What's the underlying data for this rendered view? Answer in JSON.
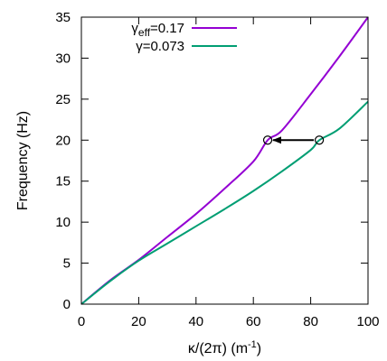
{
  "chart_data": {
    "type": "line",
    "title": "",
    "xlabel": {
      "prefix": "κ/(2π) (m",
      "sup": "-1",
      "suffix": ")"
    },
    "ylabel": "Frequency (Hz)",
    "xlim": [
      0,
      100
    ],
    "ylim": [
      0,
      35
    ],
    "x_ticks": [
      0,
      20,
      40,
      60,
      80,
      100
    ],
    "y_ticks": [
      0,
      5,
      10,
      15,
      20,
      25,
      30,
      35
    ],
    "grid": false,
    "legend_position": "top-left",
    "series": [
      {
        "key": "eff",
        "legend": {
          "main": "γ",
          "sub": "eff",
          "value": "=0.17"
        },
        "color": "#9400d3",
        "x": [
          0,
          10,
          20,
          30,
          40,
          50,
          60,
          65,
          70,
          80,
          90,
          100
        ],
        "y": [
          0,
          2.9,
          5.4,
          8.2,
          11.0,
          14.1,
          17.4,
          20.0,
          21.2,
          25.6,
          30.2,
          35.0
        ]
      },
      {
        "key": "gamma",
        "legend": {
          "main": "γ",
          "sub": "",
          "value": "=0.073"
        },
        "color": "#009e73",
        "x": [
          0,
          10,
          20,
          30,
          40,
          50,
          60,
          70,
          80,
          83,
          90,
          100
        ],
        "y": [
          0,
          2.8,
          5.3,
          7.4,
          9.5,
          11.6,
          13.8,
          16.2,
          18.8,
          20.0,
          21.4,
          24.7
        ]
      }
    ],
    "markers": [
      {
        "x": 65,
        "y": 20,
        "shape": "open-circle"
      },
      {
        "x": 83,
        "y": 20,
        "shape": "open-circle"
      }
    ],
    "arrow": {
      "from": [
        83,
        20
      ],
      "to": [
        65,
        20
      ]
    }
  }
}
